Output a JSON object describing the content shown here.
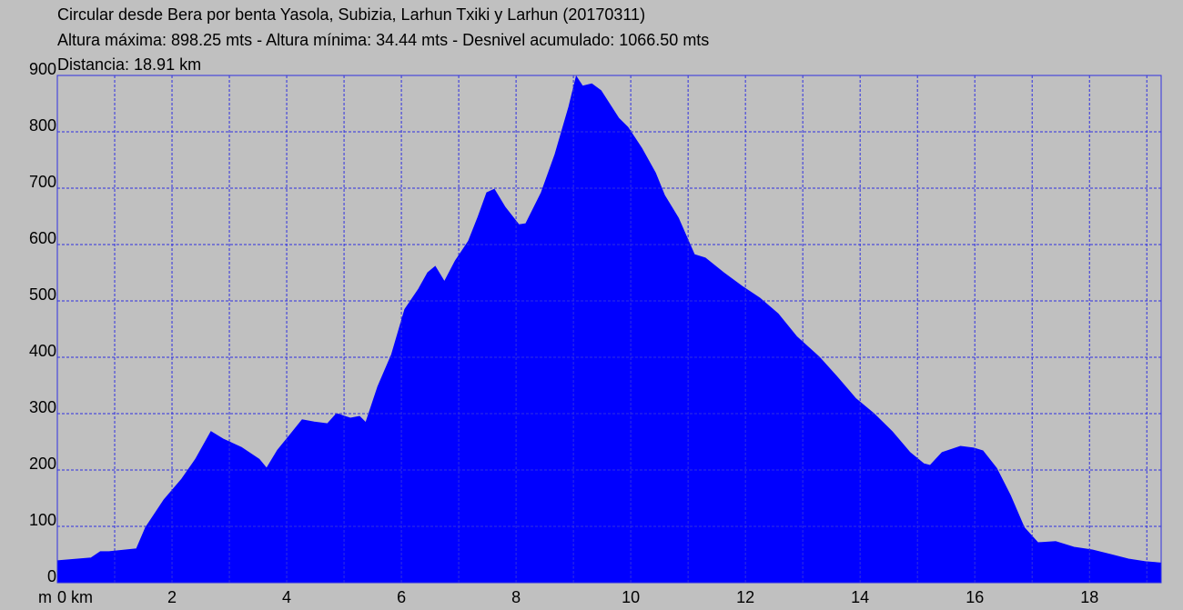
{
  "chart_data": {
    "type": "area",
    "title": "Circular desde Bera por benta Yasola, Subizia, Larhun Txiki y Larhun (20170311)",
    "subtitle": "Altura máxima: 898.25 mts - Altura mínima: 34.44 mts - Desnivel acumulado: 1066.50 mts",
    "note": "Distancia: 18.91 km",
    "y_label": "m",
    "color": "#0000ff",
    "grid": true,
    "xlim": [
      0,
      19.25
    ],
    "ylim": [
      0,
      900
    ],
    "xticks": [
      {
        "value": 0,
        "label": "0 km"
      },
      2,
      4,
      6,
      8,
      10,
      12,
      14,
      16,
      18
    ],
    "xminor": [
      1,
      3,
      5,
      7,
      9,
      11,
      13,
      15,
      17,
      19
    ],
    "yticks": [
      0,
      100,
      200,
      300,
      400,
      500,
      600,
      700,
      800,
      900
    ],
    "x": [
      0,
      0.59,
      0.75,
      0.9,
      1.38,
      1.54,
      1.86,
      2.17,
      2.41,
      2.68,
      2.89,
      3.21,
      3.52,
      3.65,
      3.84,
      4.08,
      4.27,
      4.48,
      4.71,
      4.87,
      5.11,
      5.27,
      5.38,
      5.59,
      5.83,
      6.06,
      6.3,
      6.46,
      6.59,
      6.75,
      6.94,
      7.17,
      7.33,
      7.49,
      7.62,
      7.81,
      8.05,
      8.17,
      8.44,
      8.68,
      8.92,
      9.05,
      9.16,
      9.32,
      9.48,
      9.79,
      9.95,
      10.19,
      10.43,
      10.59,
      10.83,
      11.11,
      11.3,
      11.62,
      11.94,
      12.25,
      12.57,
      12.89,
      13.29,
      13.6,
      13.92,
      14.24,
      14.56,
      14.87,
      15.11,
      15.22,
      15.43,
      15.75,
      15.98,
      16.14,
      16.38,
      16.62,
      16.86,
      17.1,
      17.41,
      17.73,
      18.05,
      18.37,
      18.68,
      19.0,
      19.25
    ],
    "values": [
      39,
      44,
      55,
      55,
      60,
      98,
      147,
      184,
      219,
      268,
      255,
      240,
      219,
      203,
      235,
      265,
      289,
      285,
      282,
      300,
      292,
      295,
      284,
      348,
      405,
      485,
      521,
      550,
      561,
      534,
      571,
      606,
      647,
      692,
      698,
      666,
      635,
      637,
      692,
      760,
      844,
      898,
      881,
      885,
      873,
      824,
      808,
      771,
      727,
      687,
      647,
      582,
      576,
      550,
      526,
      505,
      477,
      437,
      400,
      365,
      327,
      300,
      268,
      231,
      211,
      208,
      231,
      242,
      239,
      234,
      203,
      155,
      98,
      71,
      73,
      63,
      58,
      50,
      42,
      37,
      35
    ]
  }
}
